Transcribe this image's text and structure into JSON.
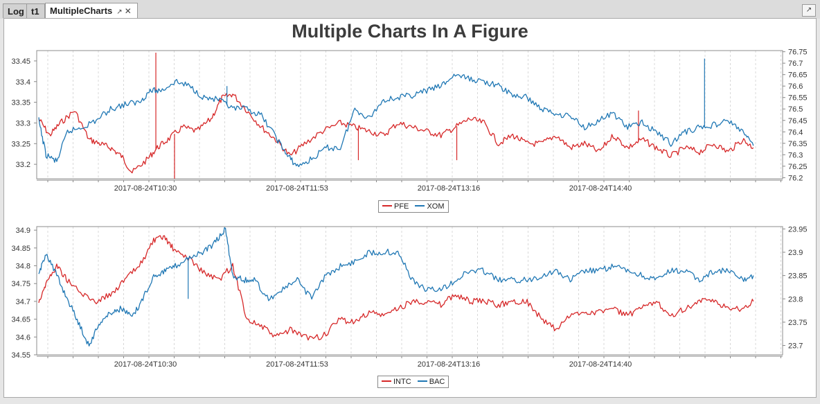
{
  "tabs": [
    {
      "label": "Log",
      "active": false
    },
    {
      "label": "t1",
      "active": false
    },
    {
      "label": "MultipleCharts",
      "active": true
    }
  ],
  "icons": {
    "float": "float-icon",
    "close": "close-icon",
    "corner": "undock-icon"
  },
  "figure_title": "Multiple Charts In A Figure",
  "colors": {
    "red": "#d62728",
    "blue": "#1f77b4"
  },
  "chart_data": [
    {
      "type": "line",
      "title": "",
      "xlabel": "",
      "x_ticks": [
        "2017-08-24T10:30",
        "2017-08-24T11:53",
        "2017-08-24T13:16",
        "2017-08-24T14:40"
      ],
      "left_axis": {
        "ticks": [
          "33.2",
          "33.25",
          "33.3",
          "33.35",
          "33.4",
          "33.45"
        ],
        "range": [
          33.165,
          33.475
        ]
      },
      "right_axis": {
        "ticks": [
          "76.2",
          "76.25",
          "76.3",
          "76.35",
          "76.4",
          "76.45",
          "76.5",
          "76.55",
          "76.6",
          "76.65",
          "76.7",
          "76.75"
        ],
        "range": [
          76.195,
          76.755
        ]
      },
      "x_range": [
        0,
        100
      ],
      "legend_placement": "bottom-center",
      "series": [
        {
          "name": "PFE",
          "axis": "left",
          "color": "#d62728",
          "x": [
            0,
            1.5,
            3,
            5,
            7,
            8.5,
            10,
            11.5,
            13,
            15,
            16.5,
            18,
            20,
            22,
            24,
            25.5,
            27,
            29,
            31,
            33,
            35,
            37,
            39.5,
            42,
            44,
            46,
            48,
            50,
            52,
            54,
            56,
            58,
            60,
            62,
            64,
            66,
            68,
            70,
            72,
            74,
            76,
            78,
            80,
            82,
            84,
            86,
            88,
            90,
            92,
            94,
            96,
            98,
            99.5
          ],
          "y": [
            33.31,
            33.27,
            33.3,
            33.33,
            33.26,
            33.25,
            33.24,
            33.22,
            33.18,
            33.21,
            33.24,
            33.26,
            33.29,
            33.28,
            33.31,
            33.36,
            33.37,
            33.33,
            33.29,
            33.26,
            33.22,
            33.25,
            33.28,
            33.3,
            33.29,
            33.28,
            33.27,
            33.3,
            33.29,
            33.28,
            33.27,
            33.29,
            33.31,
            33.3,
            33.25,
            33.27,
            33.25,
            33.25,
            33.27,
            33.24,
            33.25,
            33.23,
            33.27,
            33.24,
            33.26,
            33.24,
            33.22,
            33.24,
            33.23,
            33.25,
            33.23,
            33.26,
            33.24
          ],
          "spikes": [
            {
              "x": 16.3,
              "y": 33.47
            },
            {
              "x": 18.9,
              "y": 33.165
            },
            {
              "x": 44.5,
              "y": 33.21
            },
            {
              "x": 58.2,
              "y": 33.21
            },
            {
              "x": 83.5,
              "y": 33.33
            }
          ]
        },
        {
          "name": "XOM",
          "axis": "right",
          "color": "#1f77b4",
          "x": [
            0,
            1,
            2.5,
            4,
            6,
            8,
            10,
            12,
            14,
            15.5,
            17,
            19,
            21,
            23,
            25,
            27,
            29,
            31,
            33,
            34.5,
            36,
            38,
            40,
            42,
            44,
            46,
            48,
            50,
            52,
            54,
            56,
            58,
            60,
            62,
            64,
            66,
            68,
            70,
            72,
            74,
            76,
            78,
            80,
            82,
            84,
            86,
            88,
            90,
            92,
            94,
            96,
            98,
            99.5
          ],
          "y": [
            76.45,
            76.3,
            76.27,
            76.4,
            76.42,
            76.45,
            76.5,
            76.52,
            76.53,
            76.58,
            76.58,
            76.62,
            76.6,
            76.55,
            76.54,
            76.5,
            76.5,
            76.47,
            76.38,
            76.3,
            76.25,
            76.28,
            76.33,
            76.33,
            76.5,
            76.46,
            76.54,
            76.55,
            76.56,
            76.58,
            76.6,
            76.65,
            76.63,
            76.62,
            76.6,
            76.56,
            76.55,
            76.5,
            76.48,
            76.47,
            76.42,
            76.45,
            76.48,
            76.42,
            76.44,
            76.4,
            76.35,
            76.4,
            76.42,
            76.43,
            76.45,
            76.4,
            76.34
          ],
          "spikes": [
            {
              "x": 26.2,
              "y": 76.6
            },
            {
              "x": 92.7,
              "y": 76.72
            }
          ]
        }
      ]
    },
    {
      "type": "line",
      "title": "",
      "xlabel": "",
      "x_ticks": [
        "2017-08-24T10:30",
        "2017-08-24T11:53",
        "2017-08-24T13:16",
        "2017-08-24T14:40"
      ],
      "left_axis": {
        "ticks": [
          "34.55",
          "34.6",
          "34.65",
          "34.7",
          "34.75",
          "34.8",
          "34.85",
          "34.9"
        ],
        "range": [
          34.55,
          34.91
        ]
      },
      "right_axis": {
        "ticks": [
          "23.7",
          "23.75",
          "23.8",
          "23.85",
          "23.9",
          "23.95"
        ],
        "range": [
          23.68,
          23.955
        ]
      },
      "x_range": [
        0,
        100
      ],
      "legend_placement": "bottom-center",
      "series": [
        {
          "name": "INTC",
          "axis": "left",
          "color": "#d62728",
          "x": [
            0,
            1,
            2.5,
            4,
            6,
            8,
            10,
            12,
            14,
            16,
            17.5,
            19,
            21,
            23,
            25,
            27,
            29,
            31,
            33,
            35,
            37,
            39.5,
            42,
            44,
            46,
            48,
            50,
            52,
            54,
            56,
            58,
            60,
            62,
            64,
            66,
            68,
            70,
            72,
            74,
            76,
            78,
            80,
            82,
            84,
            86,
            88,
            90,
            92,
            94,
            96,
            98,
            99.5
          ],
          "y": [
            34.7,
            34.75,
            34.8,
            34.76,
            34.72,
            34.7,
            34.72,
            34.76,
            34.8,
            34.87,
            34.88,
            34.84,
            34.82,
            34.78,
            34.76,
            34.8,
            34.65,
            34.63,
            34.6,
            34.62,
            34.6,
            34.6,
            34.65,
            34.64,
            34.67,
            34.66,
            34.68,
            34.7,
            34.7,
            34.69,
            34.72,
            34.7,
            34.7,
            34.69,
            34.7,
            34.7,
            34.65,
            34.62,
            34.66,
            34.67,
            34.67,
            34.68,
            34.66,
            34.68,
            34.7,
            34.66,
            34.68,
            34.7,
            34.7,
            34.68,
            34.68,
            34.7
          ]
        },
        {
          "name": "BAC",
          "axis": "right",
          "color": "#1f77b4",
          "x": [
            0,
            1,
            2.5,
            4,
            5.5,
            7,
            8.5,
            10,
            11.5,
            13,
            14.5,
            16,
            17.5,
            19,
            21,
            23,
            24.5,
            26,
            27,
            28.5,
            30,
            32,
            34,
            36,
            38,
            40,
            42,
            44,
            46,
            48,
            50,
            52,
            54,
            56,
            58,
            60,
            62,
            64,
            66,
            68,
            70,
            72,
            74,
            76,
            78,
            80,
            82,
            84,
            86,
            88,
            90,
            92,
            94,
            96,
            98,
            99.5
          ],
          "y": [
            23.85,
            23.9,
            23.85,
            23.8,
            23.75,
            23.7,
            23.75,
            23.77,
            23.78,
            23.76,
            23.8,
            23.85,
            23.86,
            23.87,
            23.89,
            23.9,
            23.92,
            23.95,
            23.85,
            23.84,
            23.84,
            23.8,
            23.82,
            23.84,
            23.8,
            23.85,
            23.87,
            23.88,
            23.9,
            23.9,
            23.9,
            23.84,
            23.82,
            23.82,
            23.84,
            23.86,
            23.86,
            23.84,
            23.84,
            23.84,
            23.85,
            23.86,
            23.84,
            23.86,
            23.86,
            23.87,
            23.86,
            23.85,
            23.84,
            23.86,
            23.86,
            23.84,
            23.86,
            23.86,
            23.84,
            23.85
          ],
          "spikes": [
            {
              "x": 20.8,
              "y": 23.8
            }
          ]
        }
      ]
    }
  ]
}
